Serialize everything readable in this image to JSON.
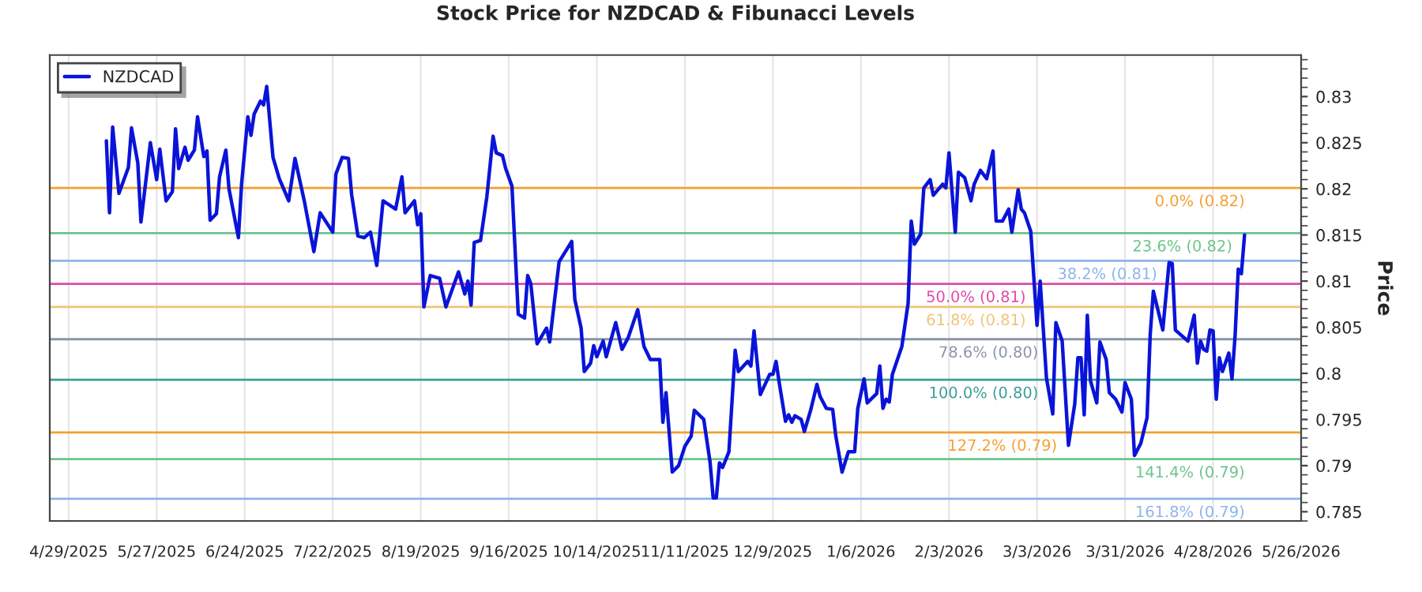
{
  "chart_data": {
    "type": "line",
    "title": "Stock Price for NZDCAD & Fibunacci Levels",
    "ylabel": "Price",
    "x": [
      "2025-05-11",
      "2025-05-12",
      "2025-05-13",
      "2025-05-15",
      "2025-05-18",
      "2025-05-19",
      "2025-05-21",
      "2025-05-22",
      "2025-05-25",
      "2025-05-27",
      "2025-05-28",
      "2025-05-30",
      "2025-06-01",
      "2025-06-02",
      "2025-06-03",
      "2025-06-05",
      "2025-06-06",
      "2025-06-08",
      "2025-06-09",
      "2025-06-11",
      "2025-06-12",
      "2025-06-13",
      "2025-06-15",
      "2025-06-16",
      "2025-06-18",
      "2025-06-19",
      "2025-06-22",
      "2025-06-23",
      "2025-06-25",
      "2025-06-26",
      "2025-06-27",
      "2025-06-29",
      "2025-06-30",
      "2025-07-01",
      "2025-07-03",
      "2025-07-05",
      "2025-07-08",
      "2025-07-10",
      "2025-07-13",
      "2025-07-16",
      "2025-07-18",
      "2025-07-22",
      "2025-07-23",
      "2025-07-25",
      "2025-07-27",
      "2025-07-28",
      "2025-07-30",
      "2025-08-01",
      "2025-08-03",
      "2025-08-05",
      "2025-08-07",
      "2025-08-11",
      "2025-08-13",
      "2025-08-14",
      "2025-08-17",
      "2025-08-18",
      "2025-08-19",
      "2025-08-20",
      "2025-08-22",
      "2025-08-25",
      "2025-08-27",
      "2025-08-31",
      "2025-09-02",
      "2025-09-03",
      "2025-09-04",
      "2025-09-05",
      "2025-09-07",
      "2025-09-09",
      "2025-09-11",
      "2025-09-12",
      "2025-09-14",
      "2025-09-15",
      "2025-09-17",
      "2025-09-19",
      "2025-09-21",
      "2025-09-22",
      "2025-09-23",
      "2025-09-25",
      "2025-09-28",
      "2025-09-29",
      "2025-10-02",
      "2025-10-06",
      "2025-10-07",
      "2025-10-09",
      "2025-10-10",
      "2025-10-12",
      "2025-10-13",
      "2025-10-14",
      "2025-10-16",
      "2025-10-17",
      "2025-10-20",
      "2025-10-22",
      "2025-10-24",
      "2025-10-27",
      "2025-10-29",
      "2025-10-31",
      "2025-11-03",
      "2025-11-04",
      "2025-11-05",
      "2025-11-07",
      "2025-11-09",
      "2025-11-11",
      "2025-11-13",
      "2025-11-14",
      "2025-11-17",
      "2025-11-19",
      "2025-11-20",
      "2025-11-21",
      "2025-11-22",
      "2025-11-23",
      "2025-11-25",
      "2025-11-27",
      "2025-11-28",
      "2025-12-01",
      "2025-12-02",
      "2025-12-03",
      "2025-12-05",
      "2025-12-08",
      "2025-12-09",
      "2025-12-10",
      "2025-12-11",
      "2025-12-13",
      "2025-12-14",
      "2025-12-15",
      "2025-12-16",
      "2025-12-18",
      "2025-12-19",
      "2025-12-21",
      "2025-12-23",
      "2025-12-24",
      "2025-12-26",
      "2025-12-28",
      "2025-12-29",
      "2025-12-31",
      "2026-01-02",
      "2026-01-04",
      "2026-01-05",
      "2026-01-07",
      "2026-01-08",
      "2026-01-11",
      "2026-01-12",
      "2026-01-13",
      "2026-01-14",
      "2026-01-15",
      "2026-01-16",
      "2026-01-19",
      "2026-01-21",
      "2026-01-22",
      "2026-01-23",
      "2026-01-25",
      "2026-01-26",
      "2026-01-28",
      "2026-01-29",
      "2026-02-01",
      "2026-02-02",
      "2026-02-03",
      "2026-02-05",
      "2026-02-06",
      "2026-02-08",
      "2026-02-10",
      "2026-02-11",
      "2026-02-13",
      "2026-02-15",
      "2026-02-17",
      "2026-02-18",
      "2026-02-20",
      "2026-02-22",
      "2026-02-23",
      "2026-02-25",
      "2026-02-26",
      "2026-02-27",
      "2026-03-01",
      "2026-03-03",
      "2026-03-04",
      "2026-03-06",
      "2026-03-08",
      "2026-03-09",
      "2026-03-11",
      "2026-03-13",
      "2026-03-15",
      "2026-03-16",
      "2026-03-17",
      "2026-03-18",
      "2026-03-19",
      "2026-03-20",
      "2026-03-22",
      "2026-03-23",
      "2026-03-25",
      "2026-03-26",
      "2026-03-28",
      "2026-03-30",
      "2026-03-31",
      "2026-04-02",
      "2026-04-03",
      "2026-04-05",
      "2026-04-07",
      "2026-04-08",
      "2026-04-09",
      "2026-04-12",
      "2026-04-14",
      "2026-04-15",
      "2026-04-16",
      "2026-04-19",
      "2026-04-20",
      "2026-04-22",
      "2026-04-23",
      "2026-04-24",
      "2026-04-25",
      "2026-04-26",
      "2026-04-27",
      "2026-04-28",
      "2026-04-29",
      "2026-04-30",
      "2026-05-01",
      "2026-05-03",
      "2026-05-04",
      "2026-05-05",
      "2026-05-06",
      "2026-05-07",
      "2026-05-08"
    ],
    "series": [
      {
        "name": "NZDCAD",
        "color": "#0a14d8",
        "values": [
          0.8252,
          0.8174,
          0.8267,
          0.8195,
          0.8223,
          0.8266,
          0.8228,
          0.8164,
          0.825,
          0.821,
          0.8243,
          0.8187,
          0.8197,
          0.8265,
          0.8222,
          0.8245,
          0.8231,
          0.8242,
          0.8278,
          0.8235,
          0.8241,
          0.8166,
          0.8173,
          0.8213,
          0.8242,
          0.82,
          0.8147,
          0.8205,
          0.8278,
          0.8258,
          0.8281,
          0.8295,
          0.8291,
          0.8311,
          0.8234,
          0.8211,
          0.8187,
          0.8233,
          0.8186,
          0.8132,
          0.8174,
          0.8153,
          0.8216,
          0.8234,
          0.8233,
          0.8194,
          0.8149,
          0.8147,
          0.8153,
          0.8117,
          0.8187,
          0.8178,
          0.8213,
          0.8174,
          0.8187,
          0.8161,
          0.8173,
          0.8072,
          0.8106,
          0.8103,
          0.8072,
          0.811,
          0.8086,
          0.81,
          0.8074,
          0.8142,
          0.8144,
          0.8191,
          0.8257,
          0.8239,
          0.8236,
          0.8222,
          0.8203,
          0.8064,
          0.806,
          0.8106,
          0.8097,
          0.8032,
          0.8049,
          0.8034,
          0.8121,
          0.8143,
          0.808,
          0.8049,
          0.8002,
          0.8011,
          0.803,
          0.8018,
          0.8035,
          0.8018,
          0.8055,
          0.8026,
          0.8039,
          0.8069,
          0.8029,
          0.8015,
          0.8015,
          0.7947,
          0.7979,
          0.7893,
          0.79,
          0.7921,
          0.7932,
          0.796,
          0.795,
          0.7904,
          0.7865,
          0.7865,
          0.7903,
          0.7898,
          0.7915,
          0.8025,
          0.8002,
          0.8013,
          0.8008,
          0.8046,
          0.7977,
          0.7999,
          0.7999,
          0.8013,
          0.799,
          0.7948,
          0.7955,
          0.7947,
          0.7954,
          0.795,
          0.7937,
          0.796,
          0.7988,
          0.7975,
          0.7962,
          0.7961,
          0.7932,
          0.7893,
          0.7915,
          0.7915,
          0.7962,
          0.7994,
          0.7968,
          0.7978,
          0.8008,
          0.7962,
          0.7972,
          0.7969,
          0.7999,
          0.8029,
          0.8076,
          0.8165,
          0.814,
          0.8151,
          0.8201,
          0.821,
          0.8193,
          0.8205,
          0.8201,
          0.8239,
          0.8153,
          0.8218,
          0.8212,
          0.8187,
          0.8205,
          0.822,
          0.8211,
          0.8241,
          0.8165,
          0.8165,
          0.8178,
          0.8153,
          0.8199,
          0.8178,
          0.8174,
          0.8154,
          0.8052,
          0.81,
          0.7995,
          0.7956,
          0.8055,
          0.8035,
          0.7922,
          0.7967,
          0.8017,
          0.8017,
          0.7955,
          0.8063,
          0.7992,
          0.7968,
          0.8034,
          0.8015,
          0.7979,
          0.7972,
          0.7958,
          0.799,
          0.7972,
          0.7911,
          0.7924,
          0.7952,
          0.8042,
          0.8089,
          0.8047,
          0.812,
          0.8119,
          0.8047,
          0.8038,
          0.8035,
          0.8063,
          0.8011,
          0.8035,
          0.8026,
          0.8024,
          0.8047,
          0.8046,
          0.7972,
          0.8017,
          0.8002,
          0.8022,
          0.7994,
          0.8041,
          0.8113,
          0.8108,
          0.815
        ]
      }
    ],
    "xlim": [
      "2025-04-23",
      "2026-05-26"
    ],
    "xticks": [
      {
        "value": "2025-04-29",
        "label": "4/29/2025"
      },
      {
        "value": "2025-05-27",
        "label": "5/27/2025"
      },
      {
        "value": "2025-06-24",
        "label": "6/24/2025"
      },
      {
        "value": "2025-07-22",
        "label": "7/22/2025"
      },
      {
        "value": "2025-08-19",
        "label": "8/19/2025"
      },
      {
        "value": "2025-09-16",
        "label": "9/16/2025"
      },
      {
        "value": "2025-10-14",
        "label": "10/14/2025"
      },
      {
        "value": "2025-11-11",
        "label": "11/11/2025"
      },
      {
        "value": "2025-12-09",
        "label": "12/9/2025"
      },
      {
        "value": "2026-01-06",
        "label": "1/6/2026"
      },
      {
        "value": "2026-02-03",
        "label": "2/3/2026"
      },
      {
        "value": "2026-03-03",
        "label": "3/3/2026"
      },
      {
        "value": "2026-03-31",
        "label": "3/31/2026"
      },
      {
        "value": "2026-04-28",
        "label": "4/28/2026"
      },
      {
        "value": "2026-05-26",
        "label": "5/26/2026"
      }
    ],
    "ylim": [
      0.784,
      0.8345
    ],
    "yticks": [
      0.785,
      0.79,
      0.795,
      0.8,
      0.805,
      0.81,
      0.815,
      0.82,
      0.825,
      0.83
    ],
    "ref_lines": [
      {
        "axis": "y",
        "value": 0.8201,
        "label": "0.0% (0.82)",
        "color": "#f5a030"
      },
      {
        "axis": "y",
        "value": 0.8152,
        "label": "23.6% (0.82)",
        "color": "#6cc48c"
      },
      {
        "axis": "y",
        "value": 0.8122,
        "label": "38.2% (0.81)",
        "color": "#8cb4ec"
      },
      {
        "axis": "y",
        "value": 0.8097,
        "label": "50.0% (0.81)",
        "color": "#e04aa8"
      },
      {
        "axis": "y",
        "value": 0.8072,
        "label": "61.8% (0.81)",
        "color": "#f0c478"
      },
      {
        "axis": "y",
        "value": 0.8037,
        "label": "78.6% (0.80)",
        "color": "#8a94a8"
      },
      {
        "axis": "y",
        "value": 0.7993,
        "label": "100.0% (0.80)",
        "color": "#3a9e9a"
      },
      {
        "axis": "y",
        "value": 0.7936,
        "label": "127.2% (0.79)",
        "color": "#f5a030"
      },
      {
        "axis": "y",
        "value": 0.7907,
        "label": "141.4% (0.79)",
        "color": "#6cc48c"
      },
      {
        "axis": "y",
        "value": 0.7864,
        "label": "161.8% (0.79)",
        "color": "#8cb4ec"
      }
    ],
    "grid": "x",
    "legend": "top left",
    "marker": "none",
    "line_style": "solid"
  }
}
